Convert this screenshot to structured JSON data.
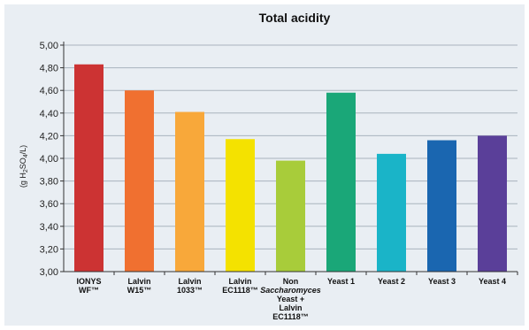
{
  "chart_data": {
    "type": "bar",
    "title": "Total acidity",
    "ylabel": "(g H2SO4/L)",
    "ylim": [
      3.0,
      5.0
    ],
    "yticks": [
      "5,00",
      "4,80",
      "4,60",
      "4,40",
      "4,20",
      "4,00",
      "3,80",
      "3,60",
      "3,40",
      "3,20",
      "3,00"
    ],
    "grid": true,
    "categories": [
      [
        "IONYS",
        "WF™"
      ],
      [
        "Lalvin",
        "W15™"
      ],
      [
        "Lalvin",
        "1033™"
      ],
      [
        "Lalvin",
        "EC1118™"
      ],
      [
        "Non",
        "Saccharomyces",
        "Yeast +",
        "Lalvin",
        "EC1118™"
      ],
      [
        "Yeast 1"
      ],
      [
        "Yeast 2"
      ],
      [
        "Yeast 3"
      ],
      [
        "Yeast 4"
      ]
    ],
    "values": [
      4.83,
      4.6,
      4.41,
      4.17,
      3.98,
      4.58,
      4.04,
      4.16,
      4.2
    ],
    "colors": [
      "#cc3333",
      "#f07030",
      "#f8a83a",
      "#f4e200",
      "#a8cc3a",
      "#1aa778",
      "#1ab4c8",
      "#1a66b0",
      "#5a3f99"
    ]
  }
}
